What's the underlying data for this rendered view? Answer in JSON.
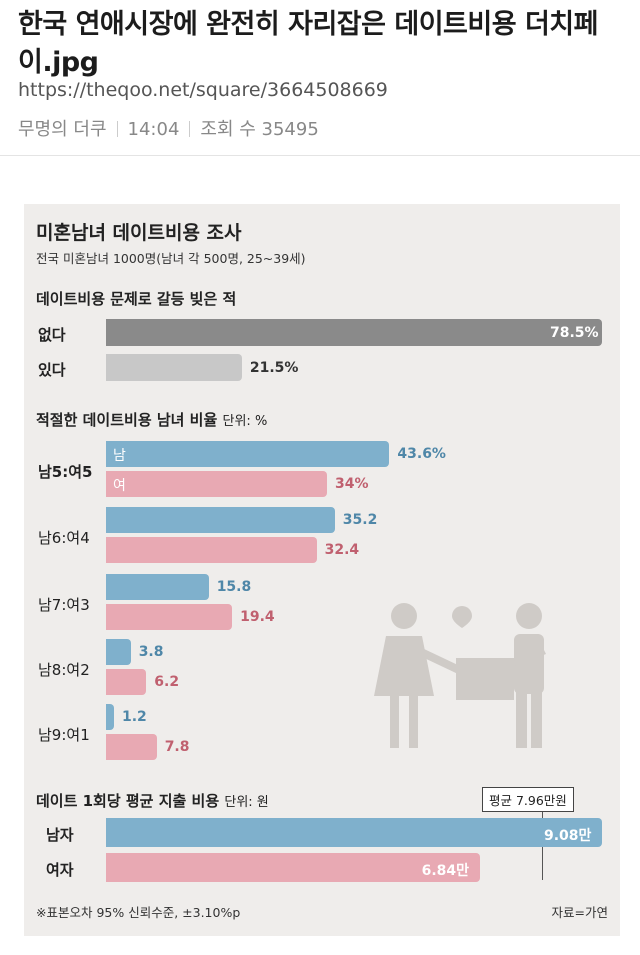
{
  "post": {
    "title": "한국 연애시장에 완전히 자리잡은 데이트비용 더치페이.jpg",
    "url": "https://theqoo.net/square/3664508669",
    "author": "무명의 더쿠",
    "time": "14:04",
    "views_label": "조회 수 35495"
  },
  "infographic": {
    "title": "미혼남녀 데이트비용 조사",
    "subtitle": "전국 미혼남녀 1000명(남녀 각 500명, 25~39세)",
    "footnote": "※표본오차 95% 신뢰수준, ±3.10%p",
    "source": "자료=가연",
    "colors": {
      "men": "#7fb0cc",
      "women": "#e8a9b3",
      "no": "#8a8a8a",
      "yes": "#c8c8c8"
    }
  },
  "chart_data": [
    {
      "type": "bar",
      "title": "데이트비용 문제로 갈등 빚은 적",
      "categories": [
        "없다",
        "있다"
      ],
      "values": [
        78.5,
        21.5
      ],
      "value_labels": [
        "78.5%",
        "21.5%"
      ],
      "xlim": [
        0,
        100
      ]
    },
    {
      "type": "bar",
      "title": "적절한 데이트비용 남녀 비율",
      "unit_label": "단위: %",
      "categories": [
        "남5:여5",
        "남6:여4",
        "남7:여3",
        "남8:여2",
        "남9:여1"
      ],
      "series": [
        {
          "name": "남",
          "values": [
            43.6,
            35.2,
            15.8,
            3.8,
            1.2
          ],
          "labels": [
            "43.6%",
            "35.2",
            "15.8",
            "3.8",
            "1.2"
          ]
        },
        {
          "name": "여",
          "values": [
            34,
            32.4,
            19.4,
            6.2,
            7.8
          ],
          "labels": [
            "34%",
            "32.4",
            "19.4",
            "6.2",
            "7.8"
          ]
        }
      ],
      "xlim": [
        0,
        100
      ]
    },
    {
      "type": "bar",
      "title": "데이트 1회당 평균 지출 비용",
      "unit_label": "단위: 원",
      "categories": [
        "남자",
        "여자"
      ],
      "values": [
        9.08,
        6.84
      ],
      "value_labels": [
        "9.08만",
        "6.84만"
      ],
      "average": 7.96,
      "average_label": "평균 7.96만원",
      "xlim": [
        0,
        9.08
      ]
    }
  ]
}
